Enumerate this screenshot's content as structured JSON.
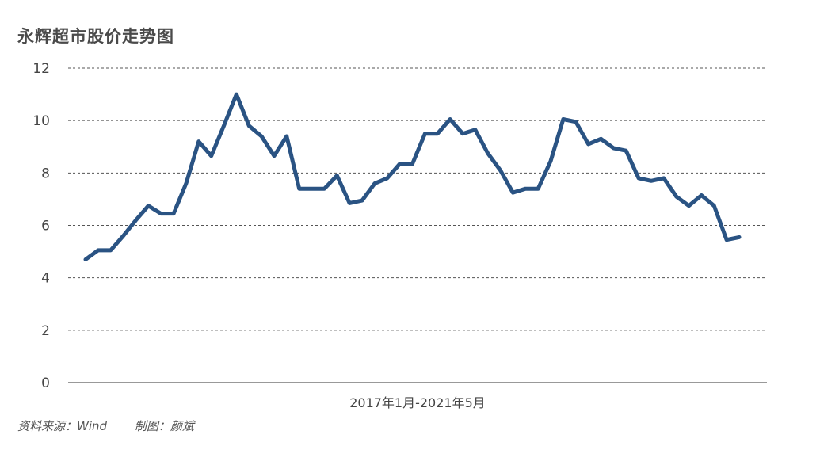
{
  "title": "永辉超市股价走势图",
  "footer": {
    "source": "资料来源：Wind",
    "author": "制图：颜斌"
  },
  "colors": {
    "line": "#2a5383",
    "grid": "#555555",
    "axis": "#333333"
  },
  "chart_data": {
    "type": "line",
    "title": "永辉超市股价走势图",
    "xlabel": "2017年1月-2021年5月",
    "ylabel": "",
    "ylim": [
      0,
      12
    ],
    "yticks": [
      0,
      2,
      4,
      6,
      8,
      10,
      12
    ],
    "grid": true,
    "legend": "none",
    "x": [
      "2017-01",
      "2017-02",
      "2017-03",
      "2017-04",
      "2017-05",
      "2017-06",
      "2017-07",
      "2017-08",
      "2017-09",
      "2017-10",
      "2017-11",
      "2017-12",
      "2018-01",
      "2018-02",
      "2018-03",
      "2018-04",
      "2018-05",
      "2018-06",
      "2018-07",
      "2018-08",
      "2018-09",
      "2018-10",
      "2018-11",
      "2018-12",
      "2019-01",
      "2019-02",
      "2019-03",
      "2019-04",
      "2019-05",
      "2019-06",
      "2019-07",
      "2019-08",
      "2019-09",
      "2019-10",
      "2019-11",
      "2019-12",
      "2020-01",
      "2020-02",
      "2020-03",
      "2020-04",
      "2020-05",
      "2020-06",
      "2020-07",
      "2020-08",
      "2020-09",
      "2020-10",
      "2020-11",
      "2020-12",
      "2021-01",
      "2021-02",
      "2021-03",
      "2021-04",
      "2021-05"
    ],
    "series": [
      {
        "values": [
          4.7,
          5.05,
          5.05,
          5.6,
          6.2,
          6.75,
          6.45,
          6.45,
          7.6,
          9.2,
          8.65,
          9.8,
          11.0,
          9.8,
          9.4,
          8.65,
          9.4,
          7.4,
          7.4,
          7.4,
          7.9,
          6.85,
          6.95,
          7.6,
          7.8,
          8.35,
          8.35,
          9.5,
          9.5,
          10.05,
          9.5,
          9.65,
          8.75,
          8.1,
          7.25,
          7.4,
          7.4,
          8.45,
          10.05,
          9.95,
          9.1,
          9.3,
          8.95,
          8.85,
          7.8,
          7.7,
          7.8,
          7.1,
          6.75,
          7.15,
          6.75,
          5.45,
          5.55
        ]
      }
    ]
  }
}
